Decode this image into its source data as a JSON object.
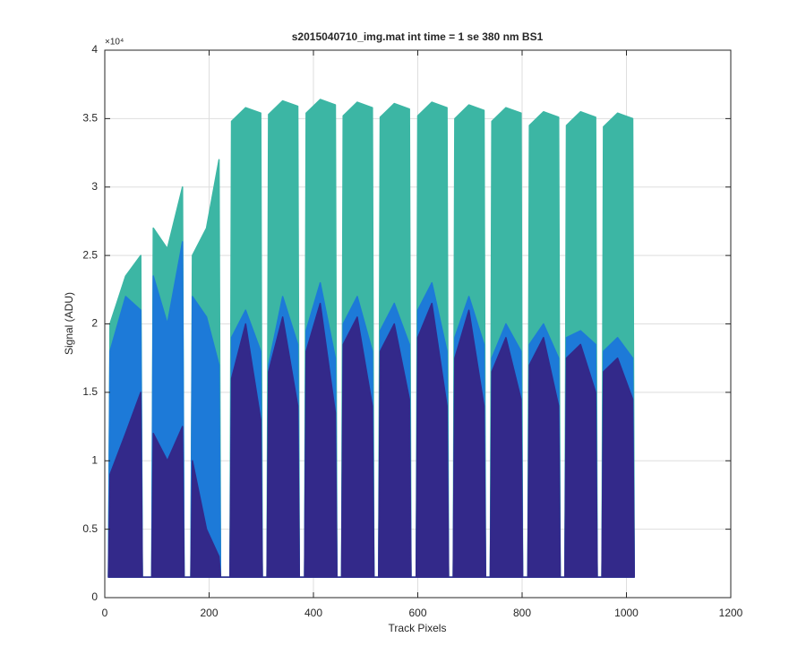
{
  "chart_data": {
    "type": "area",
    "title": "s2015040710_img.mat int time = 1 se  380 nm BS1",
    "xlabel": "Track Pixels",
    "ylabel": "Signal (ADU)",
    "y_exponent": "×10⁴",
    "x": [
      7,
      10,
      40,
      69,
      72,
      90,
      93,
      120,
      149,
      152,
      165,
      168,
      195,
      219,
      222,
      240,
      243,
      270,
      299,
      302,
      311,
      314,
      341,
      370,
      373,
      383,
      386,
      413,
      442,
      445,
      454,
      457,
      484,
      513,
      516,
      525,
      528,
      555,
      584,
      587,
      597,
      600,
      627,
      656,
      659,
      668,
      671,
      698,
      727,
      730,
      739,
      742,
      769,
      798,
      801,
      811,
      814,
      841,
      870,
      873,
      882,
      885,
      912,
      941,
      944,
      953,
      956,
      983,
      1012,
      1015
    ],
    "series": [
      {
        "color": "#3cb6a4",
        "values": [
          1500,
          20000,
          23500,
          25000,
          1500,
          1500,
          27000,
          25500,
          30000,
          1500,
          1500,
          25000,
          27000,
          32000,
          1500,
          1500,
          34800,
          35800,
          35400,
          1500,
          1500,
          35300,
          36300,
          35900,
          1500,
          1500,
          35400,
          36400,
          36000,
          1500,
          1500,
          35200,
          36200,
          35800,
          1500,
          1500,
          35100,
          36100,
          35700,
          1500,
          1500,
          35200,
          36200,
          35800,
          1500,
          1500,
          35000,
          36000,
          35600,
          1500,
          1500,
          34800,
          35800,
          35400,
          1500,
          1500,
          34500,
          35500,
          35100,
          1500,
          1500,
          34500,
          35500,
          35100,
          1500,
          1500,
          34400,
          35400,
          35000,
          1500
        ]
      },
      {
        "color": "#1d7ad8",
        "values": [
          1500,
          18000,
          22000,
          21000,
          1500,
          1500,
          23500,
          20000,
          26000,
          1500,
          1500,
          22000,
          20500,
          17000,
          1500,
          1500,
          19000,
          21000,
          18000,
          1500,
          1500,
          17000,
          22000,
          18500,
          1500,
          1500,
          19500,
          23000,
          17500,
          1500,
          1500,
          20000,
          22000,
          18000,
          1500,
          1500,
          19500,
          21500,
          18500,
          1500,
          1500,
          21000,
          23000,
          18000,
          1500,
          1500,
          19000,
          22000,
          18500,
          1500,
          1500,
          17500,
          20000,
          18000,
          1500,
          1500,
          18500,
          20000,
          17500,
          1500,
          1500,
          19000,
          19500,
          18500,
          1500,
          1500,
          18000,
          19000,
          17500,
          1500
        ]
      },
      {
        "color": "#33298a",
        "values": [
          1500,
          9000,
          12000,
          15000,
          1500,
          1500,
          12000,
          10000,
          12500,
          1500,
          1500,
          10000,
          5000,
          3000,
          1500,
          1500,
          16000,
          20000,
          13000,
          1500,
          1500,
          16500,
          20500,
          14000,
          1500,
          1500,
          18000,
          21500,
          13500,
          1500,
          1500,
          18500,
          20500,
          14000,
          1500,
          1500,
          18000,
          20000,
          14500,
          1500,
          1500,
          19000,
          21500,
          14000,
          1500,
          1500,
          17500,
          21000,
          14000,
          1500,
          1500,
          16500,
          19000,
          14500,
          1500,
          1500,
          17000,
          19000,
          14000,
          1500,
          1500,
          17500,
          18500,
          15000,
          1500,
          1500,
          16500,
          17500,
          14500,
          1500
        ]
      }
    ],
    "xlim": [
      0,
      1200
    ],
    "xticks": [
      0,
      200,
      400,
      600,
      800,
      1000,
      1200
    ],
    "ylim": [
      0,
      40000
    ],
    "yticks": [
      0,
      {
        "value": 5000,
        "label": "0.5"
      },
      {
        "value": 10000,
        "label": "1"
      },
      {
        "value": 15000,
        "label": "1.5"
      },
      {
        "value": 20000,
        "label": "2"
      },
      {
        "value": 25000,
        "label": "2.5"
      },
      {
        "value": 30000,
        "label": "3"
      },
      {
        "value": 35000,
        "label": "3.5"
      },
      {
        "value": 40000,
        "label": "4"
      }
    ],
    "grid": true
  }
}
